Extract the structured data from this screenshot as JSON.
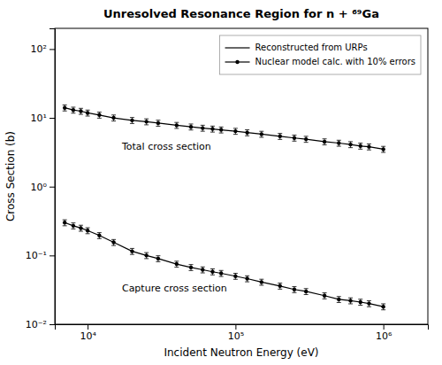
{
  "chart_data": {
    "type": "line",
    "title": "Unresolved Resonance Region for n + ⁶⁹Ga",
    "x_label": "Incident Neutron Energy (eV)",
    "y_label": "Cross Section (b)",
    "log": true,
    "grid": false,
    "legend": "upper right",
    "xlim": [
      6000,
      2000000
    ],
    "ylim": [
      0.01,
      200
    ],
    "xticks": [
      {
        "value": 10000,
        "label": "10⁴"
      },
      {
        "value": 100000,
        "label": "10⁵"
      },
      {
        "value": 1000000,
        "label": "10⁶"
      }
    ],
    "yticks": [
      {
        "value": 0.01,
        "label": "10⁻²"
      },
      {
        "value": 0.1,
        "label": "10⁻¹"
      },
      {
        "value": 1,
        "label": "10⁰"
      },
      {
        "value": 10,
        "label": "10¹"
      },
      {
        "value": 100,
        "label": "10²"
      }
    ],
    "legend_entries": [
      {
        "name": "Reconstructed from URPs",
        "line_style": "solid",
        "color": "#000000"
      },
      {
        "name": "Nuclear model calc. with 10% errors",
        "line_style": "solid",
        "marker": "circle",
        "color": "#000000"
      }
    ],
    "annotations": [
      "Total cross section",
      "Capture cross section"
    ],
    "series": [
      {
        "color": "#000000",
        "marker": "circle",
        "line_style": "solid",
        "x": [
          7000,
          8000,
          9000,
          10000,
          12000,
          15000,
          20000,
          25000,
          30000,
          40000,
          50000,
          60000,
          70000,
          80000,
          100000,
          120000,
          150000,
          200000,
          250000,
          300000,
          400000,
          500000,
          600000,
          700000,
          800000,
          1000000
        ],
        "values": [
          14.0,
          13.0,
          12.5,
          11.8,
          11.0,
          10.0,
          9.2,
          8.8,
          8.4,
          7.8,
          7.4,
          7.1,
          6.9,
          6.7,
          6.4,
          6.1,
          5.8,
          5.4,
          5.1,
          4.9,
          4.5,
          4.3,
          4.1,
          3.9,
          3.8,
          3.5
        ],
        "errors": [
          1.4,
          1.3,
          1.25,
          1.18,
          1.1,
          1.0,
          0.92,
          0.88,
          0.84,
          0.78,
          0.74,
          0.71,
          0.69,
          0.67,
          0.64,
          0.61,
          0.58,
          0.54,
          0.51,
          0.49,
          0.45,
          0.43,
          0.41,
          0.39,
          0.38,
          0.35
        ]
      },
      {
        "color": "#000000",
        "marker": "circle",
        "line_style": "solid",
        "x": [
          7000,
          8000,
          9000,
          10000,
          12000,
          15000,
          20000,
          25000,
          30000,
          40000,
          50000,
          60000,
          70000,
          80000,
          100000,
          120000,
          150000,
          200000,
          250000,
          300000,
          400000,
          500000,
          600000,
          700000,
          800000,
          1000000
        ],
        "values": [
          0.3,
          0.27,
          0.25,
          0.23,
          0.195,
          0.155,
          0.115,
          0.1,
          0.09,
          0.075,
          0.067,
          0.062,
          0.058,
          0.055,
          0.05,
          0.046,
          0.041,
          0.036,
          0.032,
          0.03,
          0.026,
          0.023,
          0.022,
          0.021,
          0.02,
          0.018
        ],
        "errors": [
          0.03,
          0.027,
          0.025,
          0.023,
          0.0195,
          0.0155,
          0.0115,
          0.01,
          0.009,
          0.0075,
          0.0067,
          0.0062,
          0.0058,
          0.0055,
          0.005,
          0.0046,
          0.0041,
          0.0036,
          0.0032,
          0.003,
          0.0026,
          0.0023,
          0.0022,
          0.0021,
          0.002,
          0.0018
        ]
      }
    ]
  }
}
